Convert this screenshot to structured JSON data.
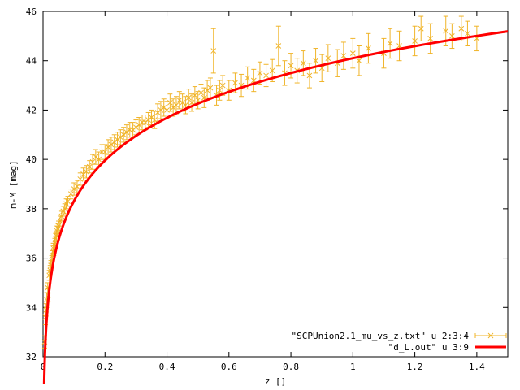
{
  "chart_data": {
    "type": "scatter",
    "title": "",
    "xlabel": "z []",
    "ylabel": "m-M [mag]",
    "xlim": [
      0,
      1.5
    ],
    "ylim": [
      32,
      46
    ],
    "x_ticks": [
      0,
      0.2,
      0.4,
      0.6,
      0.8,
      1,
      1.2,
      1.4
    ],
    "x_tick_labels": [
      "0",
      "0.2",
      "0.4",
      "0.6",
      "0.8",
      "1",
      "1.2",
      "1.4"
    ],
    "y_ticks": [
      32,
      34,
      36,
      38,
      40,
      42,
      44,
      46
    ],
    "y_tick_labels": [
      "32",
      "34",
      "36",
      "38",
      "40",
      "42",
      "44",
      "46"
    ],
    "grid": false,
    "legend_position": "bottom-right",
    "series": [
      {
        "name": "\"SCPUnion2.1_mu_vs_z.txt\" u 2:3:4",
        "style": "points-errorbars",
        "color": "#f0b428",
        "points": [
          [
            0.005,
            32.6,
            0.25
          ],
          [
            0.008,
            33.6,
            0.3
          ],
          [
            0.01,
            33.9,
            0.25
          ],
          [
            0.012,
            34.3,
            0.3
          ],
          [
            0.015,
            34.8,
            0.2
          ],
          [
            0.017,
            34.5,
            0.25
          ],
          [
            0.02,
            35.3,
            0.2
          ],
          [
            0.023,
            35.5,
            0.2
          ],
          [
            0.025,
            35.7,
            0.2
          ],
          [
            0.028,
            35.9,
            0.2
          ],
          [
            0.03,
            36.1,
            0.2
          ],
          [
            0.033,
            36.4,
            0.2
          ],
          [
            0.035,
            36.3,
            0.2
          ],
          [
            0.038,
            36.6,
            0.2
          ],
          [
            0.04,
            36.8,
            0.2
          ],
          [
            0.043,
            36.9,
            0.2
          ],
          [
            0.045,
            37.1,
            0.2
          ],
          [
            0.048,
            37.2,
            0.2
          ],
          [
            0.05,
            37.3,
            0.2
          ],
          [
            0.055,
            37.5,
            0.2
          ],
          [
            0.06,
            37.7,
            0.2
          ],
          [
            0.065,
            37.9,
            0.2
          ],
          [
            0.07,
            38.0,
            0.2
          ],
          [
            0.075,
            38.2,
            0.2
          ],
          [
            0.08,
            38.3,
            0.2
          ],
          [
            0.09,
            38.6,
            0.2
          ],
          [
            0.1,
            38.8,
            0.25
          ],
          [
            0.11,
            38.9,
            0.25
          ],
          [
            0.12,
            39.2,
            0.25
          ],
          [
            0.13,
            39.4,
            0.25
          ],
          [
            0.14,
            39.5,
            0.25
          ],
          [
            0.15,
            39.7,
            0.25
          ],
          [
            0.16,
            39.9,
            0.3
          ],
          [
            0.17,
            40.1,
            0.3
          ],
          [
            0.18,
            40.0,
            0.3
          ],
          [
            0.19,
            40.3,
            0.3
          ],
          [
            0.2,
            40.3,
            0.3
          ],
          [
            0.21,
            40.5,
            0.3
          ],
          [
            0.22,
            40.6,
            0.3
          ],
          [
            0.23,
            40.7,
            0.3
          ],
          [
            0.24,
            40.8,
            0.3
          ],
          [
            0.25,
            40.9,
            0.3
          ],
          [
            0.26,
            41.0,
            0.3
          ],
          [
            0.27,
            41.1,
            0.3
          ],
          [
            0.28,
            41.2,
            0.3
          ],
          [
            0.29,
            41.2,
            0.3
          ],
          [
            0.3,
            41.3,
            0.3
          ],
          [
            0.31,
            41.4,
            0.3
          ],
          [
            0.32,
            41.5,
            0.3
          ],
          [
            0.33,
            41.5,
            0.3
          ],
          [
            0.34,
            41.6,
            0.3
          ],
          [
            0.35,
            41.7,
            0.3
          ],
          [
            0.36,
            41.6,
            0.35
          ],
          [
            0.37,
            41.9,
            0.35
          ],
          [
            0.38,
            42.0,
            0.35
          ],
          [
            0.39,
            42.1,
            0.35
          ],
          [
            0.4,
            42.0,
            0.35
          ],
          [
            0.41,
            42.3,
            0.35
          ],
          [
            0.42,
            42.1,
            0.35
          ],
          [
            0.43,
            42.2,
            0.35
          ],
          [
            0.44,
            42.4,
            0.35
          ],
          [
            0.45,
            42.3,
            0.35
          ],
          [
            0.46,
            42.2,
            0.35
          ],
          [
            0.47,
            42.5,
            0.35
          ],
          [
            0.48,
            42.3,
            0.35
          ],
          [
            0.49,
            42.6,
            0.35
          ],
          [
            0.5,
            42.4,
            0.35
          ],
          [
            0.51,
            42.7,
            0.35
          ],
          [
            0.52,
            42.5,
            0.4
          ],
          [
            0.53,
            42.8,
            0.4
          ],
          [
            0.54,
            42.9,
            0.4
          ],
          [
            0.55,
            44.4,
            0.9
          ],
          [
            0.56,
            42.6,
            0.4
          ],
          [
            0.57,
            42.8,
            0.4
          ],
          [
            0.58,
            43.0,
            0.4
          ],
          [
            0.6,
            42.8,
            0.4
          ],
          [
            0.62,
            43.1,
            0.4
          ],
          [
            0.64,
            43.0,
            0.45
          ],
          [
            0.66,
            43.3,
            0.45
          ],
          [
            0.68,
            43.2,
            0.45
          ],
          [
            0.7,
            43.5,
            0.45
          ],
          [
            0.72,
            43.4,
            0.45
          ],
          [
            0.74,
            43.6,
            0.45
          ],
          [
            0.76,
            44.6,
            0.8
          ],
          [
            0.78,
            43.5,
            0.5
          ],
          [
            0.8,
            43.8,
            0.5
          ],
          [
            0.82,
            43.6,
            0.5
          ],
          [
            0.84,
            43.9,
            0.5
          ],
          [
            0.86,
            43.4,
            0.5
          ],
          [
            0.88,
            44.0,
            0.5
          ],
          [
            0.9,
            43.7,
            0.55
          ],
          [
            0.92,
            44.1,
            0.55
          ],
          [
            0.95,
            43.9,
            0.55
          ],
          [
            0.97,
            44.2,
            0.55
          ],
          [
            1.0,
            44.3,
            0.6
          ],
          [
            1.02,
            44.0,
            0.6
          ],
          [
            1.05,
            44.5,
            0.6
          ],
          [
            1.1,
            44.3,
            0.6
          ],
          [
            1.12,
            44.7,
            0.6
          ],
          [
            1.15,
            44.6,
            0.6
          ],
          [
            1.2,
            44.8,
            0.6
          ],
          [
            1.22,
            45.3,
            0.5
          ],
          [
            1.25,
            44.9,
            0.6
          ],
          [
            1.3,
            45.2,
            0.6
          ],
          [
            1.32,
            45.0,
            0.5
          ],
          [
            1.35,
            45.3,
            0.5
          ],
          [
            1.37,
            45.1,
            0.5
          ],
          [
            1.4,
            44.9,
            0.5
          ]
        ]
      },
      {
        "name": "\"d_L.out\" u 3:9",
        "style": "line",
        "color": "#ff0000"
      }
    ]
  }
}
